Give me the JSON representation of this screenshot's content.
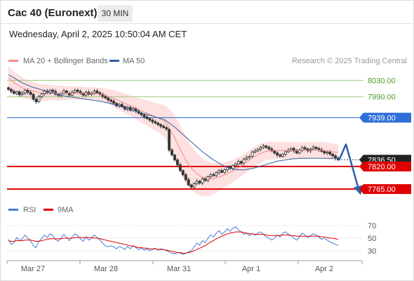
{
  "header": {
    "title": "Cac 40 (Euronext)",
    "interval": "30 MIN",
    "datetime": "Wednesday, April 2, 2025 10:50:04 AM CET"
  },
  "chart_data": [
    {
      "type": "candlestick",
      "legend": [
        {
          "label": "MA 20 + Bollinger Bands",
          "color": "#f08c8c"
        },
        {
          "label": "MA 50",
          "color": "#2f5fa0"
        }
      ],
      "source": "Research © 2025 Trading Central",
      "y_range": [
        7743,
        8058
      ],
      "x_ticks": [
        "Mar 27",
        "Mar 28",
        "Mar 31",
        "Apr 1",
        "Apr 2"
      ],
      "levels": [
        {
          "value": 8030,
          "label": "8030.00",
          "kind": "resistance",
          "color": "#9ccc7a"
        },
        {
          "value": 7990,
          "label": "7990.00",
          "kind": "resistance",
          "color": "#9ccc7a"
        },
        {
          "value": 7939,
          "label": "7939.00",
          "kind": "pivot",
          "color": "#2f6fd8"
        },
        {
          "value": 7836.5,
          "label": "7836.50",
          "kind": "last-price",
          "color": "#222222"
        },
        {
          "value": 7820,
          "label": "7820.00",
          "kind": "support",
          "color": "#e00000"
        },
        {
          "value": 7765,
          "label": "7765.00",
          "kind": "support",
          "color": "#e00000"
        }
      ],
      "forecast_arrow": {
        "color": "#2e5fa8",
        "points": [
          [
            7825,
            7835
          ],
          [
            7874,
            7874
          ],
          [
            7759,
            7759
          ]
        ]
      },
      "close": [
        8008,
        8003,
        7998,
        8002,
        7995,
        7999,
        8006,
        8001,
        7996,
        7984,
        7978,
        7990,
        7997,
        8004,
        7999,
        8006,
        8003,
        7996,
        7993,
        7998,
        8004,
        7999,
        7994,
        8001,
        8006,
        8003,
        7998,
        7994,
        8001,
        7996,
        7999,
        8004,
        8000,
        7996,
        7991,
        7987,
        7982,
        7979,
        7974,
        7968,
        7971,
        7966,
        7960,
        7964,
        7957,
        7961,
        7955,
        7950,
        7946,
        7941,
        7937,
        7933,
        7929,
        7926,
        7922,
        7918,
        7915,
        7911,
        7860,
        7848,
        7836,
        7824,
        7810,
        7800,
        7788,
        7775,
        7770,
        7778,
        7784,
        7780,
        7790,
        7786,
        7795,
        7800,
        7798,
        7805,
        7810,
        7806,
        7812,
        7818,
        7815,
        7822,
        7826,
        7832,
        7828,
        7838,
        7842,
        7845,
        7855,
        7858,
        7862,
        7866,
        7870,
        7867,
        7863,
        7858,
        7853,
        7848,
        7845,
        7850,
        7856,
        7860,
        7864,
        7858,
        7853,
        7860,
        7866,
        7863,
        7858,
        7862,
        7867,
        7864,
        7861,
        7857,
        7853,
        7855,
        7850,
        7846,
        7840,
        7836.5
      ],
      "ma20": [
        8037,
        8030,
        8025,
        8020,
        8016,
        8012,
        8009,
        8007,
        8006,
        8004,
        8002,
        8001,
        8000,
        8000,
        8000,
        8000,
        8000,
        7999,
        7999,
        7999,
        7999,
        7999,
        7999,
        7999,
        7999,
        7999,
        7999,
        7999,
        7998,
        7998,
        7998,
        7998,
        7997,
        7996,
        7995,
        7993,
        7991,
        7989,
        7986,
        7983,
        7980,
        7977,
        7974,
        7971,
        7968,
        7965,
        7962,
        7959,
        7956,
        7953,
        7950,
        7947,
        7944,
        7941,
        7938,
        7935,
        7932,
        7925,
        7915,
        7903,
        7890,
        7876,
        7862,
        7849,
        7836,
        7825,
        7816,
        7809,
        7803,
        7798,
        7794,
        7791,
        7790,
        7790,
        7791,
        7793,
        7795,
        7797,
        7800,
        7803,
        7806,
        7809,
        7813,
        7817,
        7821,
        7826,
        7831,
        7836,
        7841,
        7845,
        7849,
        7852,
        7855,
        7857,
        7858,
        7859,
        7859,
        7859,
        7859,
        7859,
        7859,
        7859,
        7859,
        7859,
        7859,
        7859,
        7859,
        7859,
        7859,
        7860,
        7860,
        7860,
        7860,
        7860,
        7859,
        7858,
        7857,
        7856,
        7855,
        7854
      ],
      "bollinger_width": [
        28,
        28,
        27,
        27,
        26,
        25,
        24,
        24,
        23,
        22,
        22,
        21,
        21,
        20,
        20,
        19,
        19,
        18,
        18,
        18,
        17,
        17,
        17,
        16,
        16,
        16,
        16,
        15,
        15,
        15,
        15,
        15,
        15,
        16,
        16,
        17,
        18,
        19,
        20,
        21,
        22,
        23,
        24,
        25,
        25,
        26,
        27,
        28,
        29,
        30,
        31,
        32,
        33,
        34,
        35,
        36,
        38,
        42,
        46,
        50,
        54,
        57,
        58,
        58,
        57,
        56,
        54,
        52,
        50,
        48,
        46,
        44,
        42,
        40,
        38,
        36,
        34,
        32,
        30,
        29,
        28,
        27,
        26,
        26,
        25,
        25,
        24,
        24,
        24,
        23,
        23,
        23,
        22,
        22,
        22,
        22,
        21,
        21,
        21,
        21,
        21,
        21,
        21,
        21,
        20,
        20,
        20,
        20,
        20,
        20,
        20,
        20,
        20,
        20,
        20,
        20,
        20,
        20,
        20,
        20
      ],
      "ma50": [
        8044,
        8040,
        8036,
        8032,
        8028,
        8024,
        8021,
        8018,
        8015,
        8013,
        8011,
        8009,
        8007,
        8005,
        8003,
        8001,
        7999,
        7997,
        7995,
        7994,
        7992,
        7991,
        7990,
        7989,
        7988,
        7987,
        7986,
        7985,
        7984,
        7983,
        7982,
        7981,
        7980,
        7979,
        7978,
        7976,
        7975,
        7973,
        7971,
        7969,
        7967,
        7965,
        7963,
        7961,
        7959,
        7957,
        7955,
        7953,
        7951,
        7949,
        7947,
        7945,
        7943,
        7941,
        7939,
        7937,
        7935,
        7931,
        7926,
        7921,
        7916,
        7910,
        7904,
        7898,
        7892,
        7886,
        7880,
        7874,
        7868,
        7862,
        7856,
        7851,
        7846,
        7841,
        7836,
        7832,
        7828,
        7824,
        7821,
        7818,
        7816,
        7814,
        7813,
        7812,
        7812,
        7812,
        7813,
        7814,
        7815,
        7817,
        7819,
        7821,
        7823,
        7825,
        7827,
        7829,
        7831,
        7833,
        7834,
        7835,
        7836,
        7837,
        7838,
        7839,
        7839,
        7840,
        7840,
        7840,
        7840,
        7840,
        7840,
        7840,
        7840,
        7840,
        7840,
        7840,
        7840,
        7840,
        7840,
        7840
      ]
    },
    {
      "type": "line",
      "legend": [
        {
          "label": "RSI",
          "color": "#4a7bd6"
        },
        {
          "label": "9MA",
          "color": "#e00000"
        }
      ],
      "y_range": [
        22,
        78
      ],
      "y_ticks": [
        70,
        50,
        30
      ],
      "series": [
        {
          "name": "RSI",
          "color": "#4a7bd6",
          "values": [
            48,
            40,
            43,
            51,
            46,
            49,
            55,
            50,
            46,
            38,
            35,
            45,
            49,
            55,
            51,
            57,
            54,
            48,
            45,
            50,
            56,
            51,
            46,
            52,
            57,
            54,
            49,
            45,
            52,
            47,
            50,
            55,
            51,
            47,
            42,
            38,
            36,
            38,
            36,
            33,
            37,
            35,
            32,
            37,
            33,
            38,
            35,
            32,
            34,
            31,
            33,
            30,
            32,
            34,
            31,
            33,
            32,
            30,
            28,
            26,
            25,
            27,
            26,
            24,
            26,
            28,
            30,
            36,
            42,
            39,
            46,
            43,
            50,
            55,
            52,
            58,
            62,
            56,
            60,
            65,
            61,
            66,
            68,
            63,
            60,
            56,
            58,
            54,
            57,
            55,
            58,
            60,
            56,
            52,
            50,
            47,
            50,
            55,
            52,
            58,
            60,
            56,
            54,
            50,
            47,
            52,
            58,
            55,
            51,
            54,
            57,
            55,
            52,
            48,
            50,
            47,
            44,
            42,
            40,
            38
          ]
        },
        {
          "name": "9MA",
          "color": "#e00000",
          "values": [
            46,
            45,
            45,
            46,
            46,
            46,
            47,
            47,
            47,
            46,
            45,
            45,
            46,
            47,
            48,
            49,
            49,
            49,
            49,
            49,
            50,
            50,
            50,
            50,
            51,
            51,
            51,
            51,
            51,
            51,
            51,
            50,
            50,
            49,
            48,
            47,
            46,
            45,
            44,
            43,
            42,
            41,
            40,
            39,
            38,
            37,
            36,
            35,
            35,
            34,
            34,
            33,
            33,
            33,
            32,
            32,
            32,
            31,
            30,
            29,
            28,
            27,
            27,
            26,
            26,
            27,
            28,
            30,
            32,
            34,
            36,
            38,
            41,
            44,
            46,
            49,
            51,
            53,
            55,
            57,
            58,
            59,
            60,
            60,
            60,
            59,
            58,
            57,
            57,
            56,
            56,
            56,
            56,
            55,
            54,
            54,
            54,
            54,
            54,
            55,
            55,
            55,
            54,
            54,
            53,
            53,
            53,
            53,
            53,
            53,
            53,
            53,
            53,
            52,
            52,
            51,
            50,
            50,
            49,
            48
          ]
        }
      ]
    }
  ]
}
